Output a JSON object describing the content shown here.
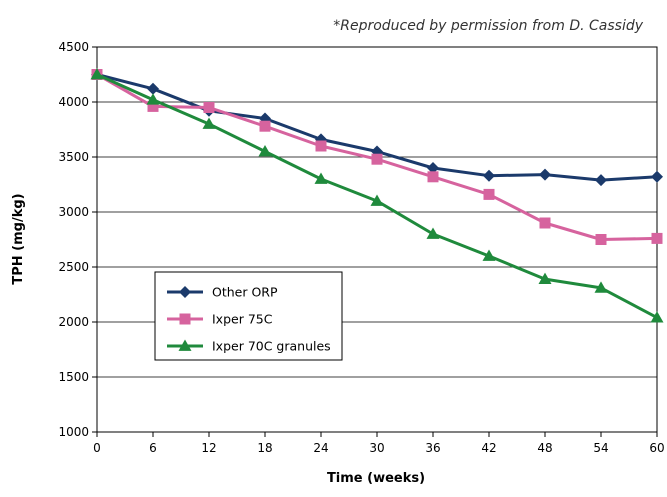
{
  "credit": "*Reproduced by permission from D. Cassidy",
  "chart_data": {
    "type": "line",
    "title": "",
    "xlabel": "Time (weeks)",
    "ylabel": "TPH (mg/kg)",
    "x": [
      0,
      6,
      12,
      18,
      24,
      30,
      36,
      42,
      48,
      54,
      60
    ],
    "xlim": [
      0,
      60
    ],
    "ylim": [
      1000,
      4500
    ],
    "yticks": [
      1000,
      1500,
      2000,
      2500,
      3000,
      3500,
      4000,
      4500
    ],
    "grid": "horizontal",
    "legend_position": "center-left",
    "series": [
      {
        "name": "Other ORP",
        "color": "#1b3a6b",
        "marker": "diamond",
        "values": [
          4250,
          4120,
          3920,
          3850,
          3660,
          3550,
          3400,
          3330,
          3340,
          3290,
          3320
        ]
      },
      {
        "name": "Ixper 75C",
        "color": "#d6639e",
        "marker": "square",
        "values": [
          4250,
          3960,
          3950,
          3780,
          3600,
          3480,
          3320,
          3160,
          2900,
          2750,
          2760
        ]
      },
      {
        "name": "Ixper 70C granules",
        "color": "#1f8a3c",
        "marker": "triangle",
        "values": [
          4250,
          4020,
          3800,
          3550,
          3300,
          3100,
          2800,
          2600,
          2390,
          2310,
          2040
        ]
      }
    ]
  }
}
